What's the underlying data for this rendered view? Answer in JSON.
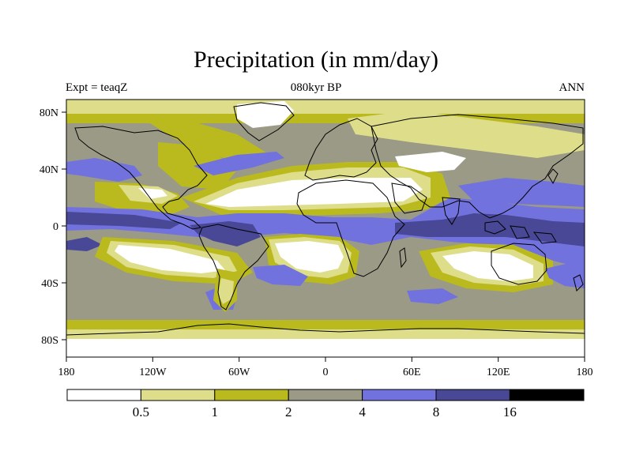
{
  "plot": {
    "title": "Precipitation (in mm/day)",
    "left_label": "Expt = teaqZ",
    "center_label": "080kyr BP",
    "right_label": "ANN"
  },
  "axes": {
    "lat_ticks": [
      "80N",
      "40N",
      "0",
      "40S",
      "80S"
    ],
    "lon_ticks": [
      "180",
      "120W",
      "60W",
      "0",
      "60E",
      "120E",
      "180"
    ]
  },
  "colorbar": {
    "levels": [
      "0.5",
      "1",
      "2",
      "4",
      "8",
      "16"
    ],
    "colors": [
      "#ffffff",
      "#dede8a",
      "#baba1e",
      "#9a9a86",
      "#7272de",
      "#484896",
      "#000000"
    ]
  },
  "palette": {
    "lt05": "#ffffff",
    "b05_1": "#dede8a",
    "b1_2": "#baba1e",
    "b2_4": "#9a9a86",
    "b4_8": "#7272de",
    "b8_16": "#484896"
  }
}
